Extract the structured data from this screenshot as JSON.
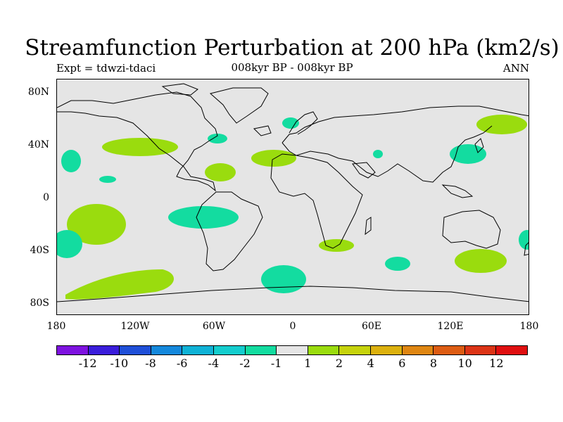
{
  "title": "Streamfunction Perturbation at 200 hPa (km2/s)",
  "subtitle_left": "Expt = tdwzi-tdaci",
  "subtitle_center": "008kyr BP - 008kyr BP",
  "subtitle_right": "ANN",
  "lat_labels": [
    "80N",
    "40N",
    "0",
    "40S",
    "80S"
  ],
  "lon_labels": [
    "180",
    "120W",
    "60W",
    "0",
    "60E",
    "120E",
    "180"
  ],
  "colorbar": {
    "colors": [
      "#7e12e0",
      "#3a1ddb",
      "#1f4fd8",
      "#1488dc",
      "#0fb2d6",
      "#14cdce",
      "#13dca0",
      "#e5e5e5",
      "#9adc0e",
      "#c6d30c",
      "#dcb10e",
      "#df8612",
      "#dd5c13",
      "#dc3416",
      "#e00f10"
    ],
    "labels": [
      "-12",
      "-10",
      "-8",
      "-6",
      "-4",
      "-2",
      "-1",
      "1",
      "2",
      "4",
      "6",
      "8",
      "10",
      "12"
    ]
  },
  "anomaly_colors": {
    "negative": "#13dca0",
    "positive": "#9adc0e",
    "ocean": "#e5e5e5",
    "coast": "#000000"
  }
}
